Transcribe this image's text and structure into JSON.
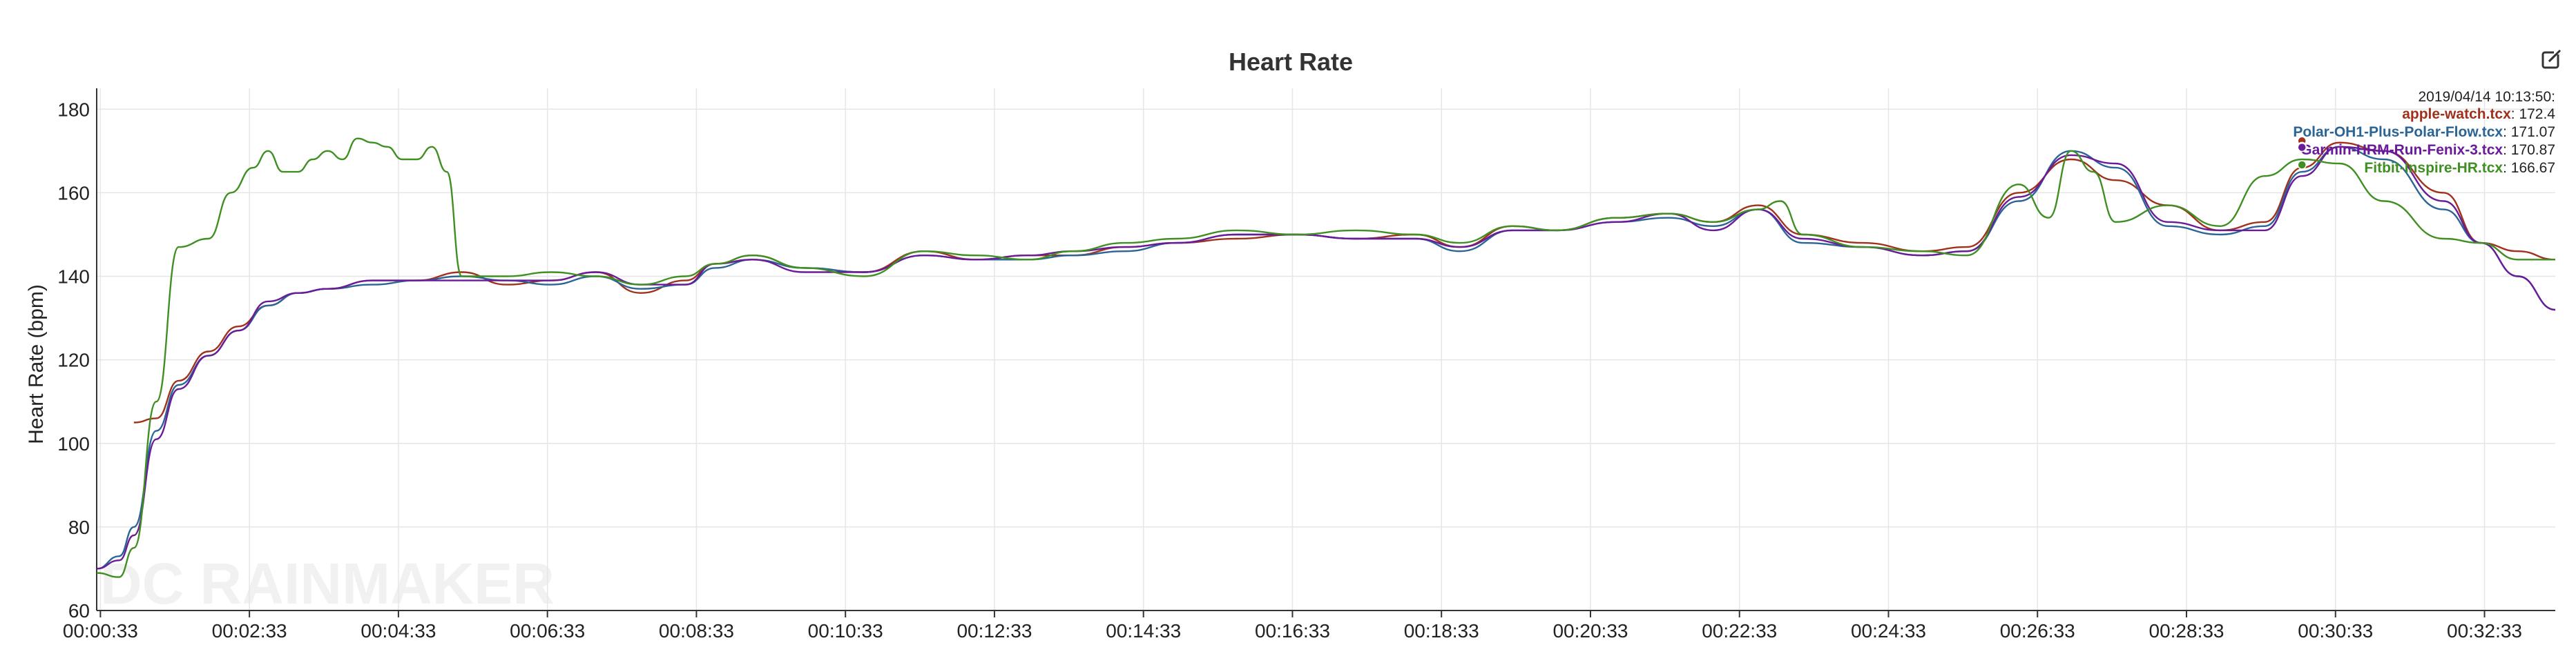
{
  "chart_data": {
    "type": "line",
    "title": "Heart Rate",
    "ylabel": "Heart Rate (bpm)",
    "xlabel": "",
    "ylim": [
      60,
      185
    ],
    "yticks": [
      60,
      80,
      100,
      120,
      140,
      160,
      180
    ],
    "xtick_labels": [
      "00:00:33",
      "00:02:33",
      "00:04:33",
      "00:06:33",
      "00:08:33",
      "00:10:33",
      "00:12:33",
      "00:14:33",
      "00:16:33",
      "00:18:33",
      "00:20:33",
      "00:22:33",
      "00:24:33",
      "00:26:33",
      "00:28:33",
      "00:30:33",
      "00:32:33"
    ],
    "x_unit": "minutes",
    "x_domain": [
      0.5,
      33.5
    ],
    "grid": true,
    "watermark": "DC RAINMAKER",
    "tooltip": {
      "timestamp": "2019/04/14 10:13:50:",
      "x_minute": 30.1,
      "entries": [
        {
          "name": "apple-watch.tcx",
          "value": "172.4",
          "color": "#a0311c"
        },
        {
          "name": "Polar-OH1-Plus-Polar-Flow.tcx",
          "value": "171.07",
          "color": "#2a6596"
        },
        {
          "name": "Garmin-HRM-Run-Fenix-3.tcx",
          "value": "170.87",
          "color": "#6a1b9a"
        },
        {
          "name": "Fitbit-Inspire-HR.tcx",
          "value": "166.67",
          "color": "#3f8f22"
        }
      ]
    },
    "series": [
      {
        "name": "apple-watch.tcx",
        "color": "#a0311c",
        "x": [
          1.0,
          1.3,
          1.6,
          2.0,
          2.4,
          2.8,
          3.2,
          3.6,
          4.2,
          4.8,
          5.4,
          6.0,
          6.6,
          7.2,
          7.8,
          8.4,
          8.8,
          9.3,
          10.0,
          10.8,
          11.6,
          12.3,
          13.0,
          13.6,
          14.3,
          15.0,
          15.8,
          16.6,
          17.4,
          18.2,
          18.8,
          19.5,
          20.1,
          20.9,
          21.6,
          22.2,
          22.8,
          23.4,
          24.2,
          25.0,
          25.6,
          26.3,
          27.0,
          27.6,
          28.3,
          29.0,
          29.6,
          30.1,
          30.6,
          31.2,
          32.0,
          32.5,
          33.0,
          33.5
        ],
        "y": [
          105,
          106,
          115,
          122,
          128,
          133,
          136,
          137,
          139,
          139,
          141,
          138,
          139,
          141,
          136,
          139,
          143,
          145,
          142,
          141,
          146,
          144,
          145,
          145,
          147,
          148,
          149,
          150,
          149,
          150,
          147,
          152,
          151,
          154,
          155,
          153,
          157,
          150,
          148,
          146,
          147,
          160,
          168,
          163,
          157,
          151,
          153,
          166,
          172,
          170,
          160,
          148,
          146,
          144
        ]
      },
      {
        "name": "Polar-OH1-Plus-Polar-Flow.tcx",
        "color": "#2a6596",
        "x": [
          0.5,
          0.8,
          1.0,
          1.3,
          1.6,
          2.0,
          2.4,
          2.8,
          3.2,
          3.6,
          4.2,
          4.8,
          5.4,
          6.0,
          6.6,
          7.2,
          7.8,
          8.4,
          8.8,
          9.3,
          10.0,
          10.8,
          11.6,
          12.3,
          13.0,
          13.6,
          14.3,
          15.0,
          15.8,
          16.6,
          17.4,
          18.2,
          18.8,
          19.5,
          20.1,
          20.9,
          21.6,
          22.2,
          22.8,
          23.4,
          24.2,
          25.0,
          25.6,
          26.3,
          27.0,
          27.6,
          28.3,
          29.0,
          29.6,
          30.1,
          30.6,
          31.2,
          32.0,
          32.5,
          33.0,
          33.5
        ],
        "y": [
          70,
          73,
          80,
          103,
          114,
          121,
          127,
          133,
          136,
          137,
          138,
          139,
          140,
          139,
          138,
          140,
          137,
          138,
          142,
          144,
          142,
          141,
          145,
          144,
          144,
          145,
          146,
          148,
          150,
          150,
          149,
          149,
          146,
          151,
          151,
          153,
          154,
          152,
          156,
          148,
          147,
          145,
          146,
          158,
          170,
          166,
          152,
          150,
          152,
          165,
          171,
          168,
          156,
          148,
          140,
          132
        ]
      },
      {
        "name": "Garmin-HRM-Run-Fenix-3.tcx",
        "color": "#6a1b9a",
        "x": [
          0.5,
          0.8,
          1.0,
          1.3,
          1.6,
          2.0,
          2.4,
          2.8,
          3.2,
          3.6,
          4.2,
          4.8,
          5.4,
          6.0,
          6.6,
          7.2,
          7.8,
          8.4,
          8.8,
          9.3,
          10.0,
          10.8,
          11.6,
          12.3,
          13.0,
          13.6,
          14.3,
          15.0,
          15.8,
          16.6,
          17.4,
          18.2,
          18.8,
          19.5,
          20.1,
          20.9,
          21.6,
          22.2,
          22.8,
          23.4,
          24.2,
          25.0,
          25.6,
          26.3,
          27.0,
          27.6,
          28.3,
          29.0,
          29.6,
          30.1,
          30.6,
          31.2,
          32.0,
          32.5,
          33.0,
          33.5
        ],
        "y": [
          70,
          72,
          78,
          101,
          113,
          121,
          127,
          134,
          136,
          137,
          139,
          139,
          139,
          139,
          139,
          141,
          138,
          138,
          143,
          144,
          141,
          141,
          145,
          144,
          145,
          146,
          147,
          148,
          150,
          150,
          149,
          149,
          147,
          151,
          151,
          153,
          155,
          151,
          156,
          149,
          147,
          145,
          146,
          159,
          169,
          167,
          153,
          151,
          151,
          164,
          171,
          170,
          158,
          148,
          140,
          132
        ]
      },
      {
        "name": "Fitbit-Inspire-HR.tcx",
        "color": "#3f8f22",
        "x": [
          0.5,
          0.8,
          1.0,
          1.3,
          1.6,
          2.0,
          2.3,
          2.6,
          2.8,
          3.0,
          3.2,
          3.4,
          3.6,
          3.8,
          4.0,
          4.2,
          4.4,
          4.6,
          4.8,
          5.0,
          5.2,
          5.4,
          6.0,
          6.6,
          7.2,
          7.8,
          8.4,
          8.8,
          9.3,
          10.0,
          10.8,
          11.6,
          12.3,
          13.0,
          13.6,
          14.3,
          15.0,
          15.8,
          16.6,
          17.4,
          18.2,
          18.8,
          19.5,
          20.1,
          20.9,
          21.6,
          22.2,
          22.8,
          23.1,
          23.4,
          24.2,
          25.0,
          25.6,
          26.3,
          26.7,
          27.0,
          27.3,
          27.6,
          28.3,
          29.0,
          29.6,
          30.1,
          30.6,
          31.2,
          32.0,
          32.5,
          33.0,
          33.5
        ],
        "y": [
          69,
          68,
          75,
          110,
          147,
          149,
          160,
          166,
          170,
          165,
          165,
          168,
          170,
          168,
          173,
          172,
          171,
          168,
          168,
          171,
          165,
          140,
          140,
          141,
          140,
          138,
          140,
          143,
          145,
          142,
          140,
          146,
          145,
          144,
          146,
          148,
          149,
          151,
          150,
          151,
          150,
          148,
          152,
          151,
          154,
          155,
          153,
          156,
          158,
          150,
          147,
          146,
          145,
          162,
          154,
          170,
          165,
          153,
          157,
          152,
          164,
          168,
          167,
          158,
          149,
          148,
          144,
          144
        ]
      }
    ]
  },
  "ui": {
    "export_icon": "edit-export-icon"
  }
}
